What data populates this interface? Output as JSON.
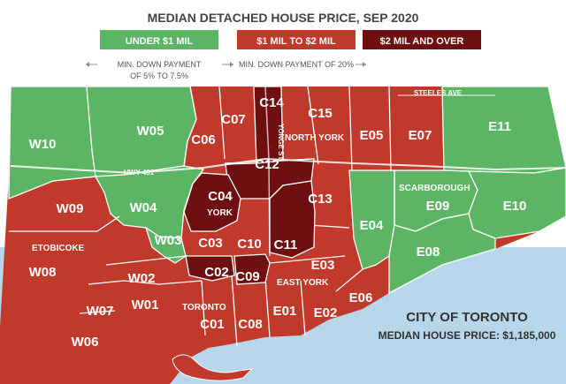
{
  "title": "MEDIAN DETACHED HOUSE PRICE, SEP 2020",
  "colors": {
    "green": "#5cb565",
    "red": "#c0392b",
    "dark": "#6e1012",
    "water": "#b7d6ea",
    "land_border": "#ffffff"
  },
  "legend": [
    {
      "key": "green",
      "label": "UNDER $1 MIL",
      "sub1": "MIN. DOWN PAYMENT",
      "sub2": "OF 5% TO 7.5%"
    },
    {
      "key": "red",
      "label": "$1 MIL TO $2 MIL",
      "sub1": "MIN. DOWN PAYMENT OF 20%",
      "sub2": ""
    },
    {
      "key": "dark",
      "label": "$2 MIL AND OVER",
      "sub1": "",
      "sub2": ""
    }
  ],
  "districts": {
    "green": [
      "W10",
      "W05",
      "W04",
      "W03",
      "E11",
      "E09",
      "E10",
      "E04",
      "E08"
    ],
    "red": [
      "C07",
      "C06",
      "C15",
      "E05",
      "E07",
      "W09",
      "W08",
      "C03",
      "C10",
      "C13",
      "E03",
      "W02",
      "W01",
      "W07",
      "W06",
      "C01",
      "C08",
      "E01",
      "E02",
      "E06"
    ],
    "dark": [
      "C14",
      "C12",
      "C04",
      "C11",
      "C02",
      "C09"
    ]
  },
  "area_labels": [
    "NORTH YORK",
    "YORK",
    "ETOBICOKE",
    "SCARBOROUGH",
    "EAST YORK",
    "TORONTO"
  ],
  "road_labels": [
    "HWY 401",
    "YONGE ST",
    "STEELES AVE"
  ],
  "footer": {
    "city": "CITY OF TORONTO",
    "median": "MEDIAN HOUSE PRICE: $1,185,000"
  }
}
